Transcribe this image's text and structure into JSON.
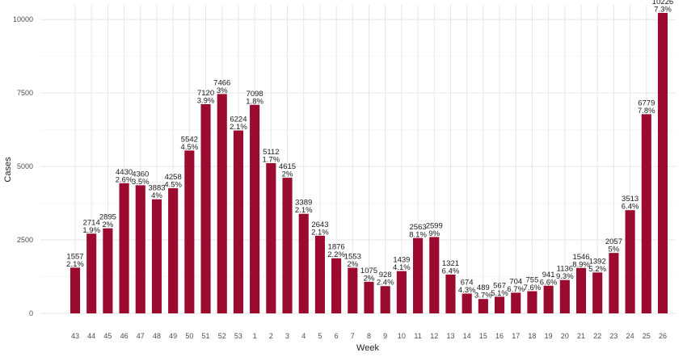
{
  "chart_data": {
    "type": "bar",
    "xlabel": "Week",
    "ylabel": "Cases",
    "ylim": [
      0,
      10500
    ],
    "yticks": [
      0,
      2500,
      5000,
      7500,
      10000
    ],
    "grid": true,
    "bar_color": "#9b0a2f",
    "grid_color": "#e6e6e6",
    "categories": [
      "43",
      "44",
      "45",
      "46",
      "47",
      "48",
      "49",
      "50",
      "51",
      "52",
      "53",
      "1",
      "2",
      "3",
      "4",
      "5",
      "6",
      "7",
      "8",
      "9",
      "10",
      "11",
      "12",
      "13",
      "14",
      "15",
      "16",
      "17",
      "18",
      "19",
      "20",
      "21",
      "22",
      "23",
      "24",
      "25",
      "26"
    ],
    "values": [
      1557,
      2714,
      2895,
      4430,
      4360,
      3883,
      4258,
      5542,
      7120,
      7466,
      6224,
      7098,
      5112,
      4615,
      3389,
      2643,
      1876,
      1553,
      1075,
      928,
      1439,
      2563,
      2599,
      1321,
      674,
      489,
      567,
      704,
      755,
      941,
      1136,
      1546,
      1392,
      2057,
      3513,
      6779,
      10226
    ],
    "percent_labels": [
      "2.1%",
      "1.9%",
      "2%",
      "2.6%",
      "3.5%",
      "4%",
      "4.5%",
      "4.5%",
      "3.9%",
      "3%",
      "2.1%",
      "1.8%",
      "1.7%",
      "2%",
      "2.1%",
      "2.1%",
      "2.2%",
      "2%",
      "2%",
      "2.4%",
      "4.1%",
      "8.1%",
      "9%",
      "6.4%",
      "4.3%",
      "3.7%",
      "5.1%",
      "6.7%",
      "7.6%",
      "6.6%",
      "9.3%",
      "8.9%",
      "5.2%",
      "5%",
      "6.4%",
      "7.8%",
      "7.3%"
    ]
  }
}
